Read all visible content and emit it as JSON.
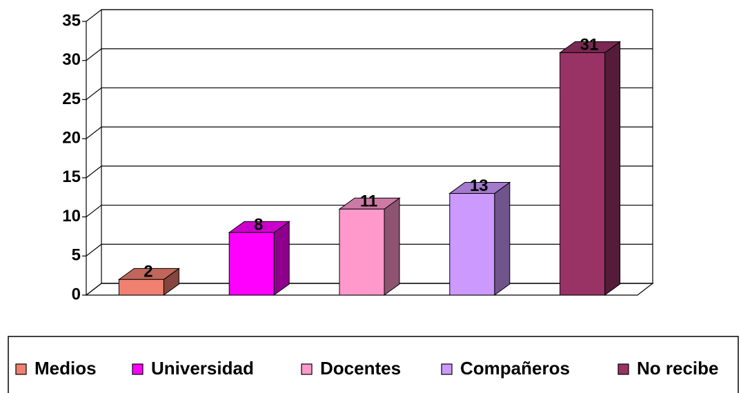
{
  "chart_data": {
    "type": "bar3d",
    "series": [
      {
        "name": "Medios",
        "color": "#f08070",
        "values": [
          2
        ]
      },
      {
        "name": "Universidad",
        "color": "#ff00ff",
        "values": [
          8
        ]
      },
      {
        "name": "Docentes",
        "color": "#ff99cc",
        "values": [
          11
        ]
      },
      {
        "name": "Compañeros",
        "color": "#cc99ff",
        "values": [
          13
        ]
      },
      {
        "name": "No recibe",
        "color": "#993366",
        "values": [
          31
        ]
      }
    ],
    "ylim": [
      0,
      35
    ],
    "yticks": [
      0,
      5,
      10,
      15,
      20,
      25,
      30,
      35
    ],
    "grid": true,
    "legend": "bottom"
  }
}
